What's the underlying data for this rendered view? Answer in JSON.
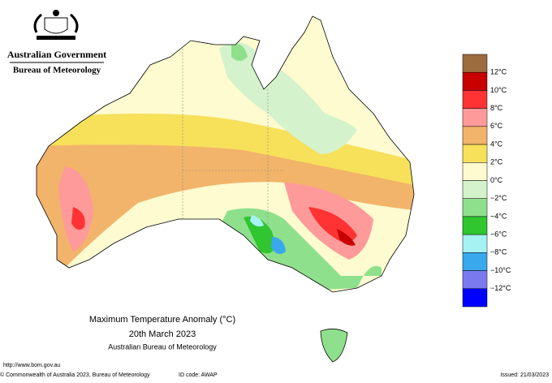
{
  "header": {
    "agency": "Australian Government",
    "bureau": "Bureau of Meteorology"
  },
  "map": {
    "title": "Maximum Temperature Anomaly (°C)",
    "date": "20th March 2023",
    "source": "Australian Bureau of Meteorology"
  },
  "legend": {
    "colors": [
      "#9c6b3e",
      "#c80000",
      "#ff3333",
      "#ff9a9a",
      "#f2b46a",
      "#f7e05a",
      "#fdfbcf",
      "#d4f2cc",
      "#8fe08c",
      "#2fc62f",
      "#a6f2f2",
      "#39a8ec",
      "#7a7aee",
      "#0000ff"
    ],
    "labels": [
      "12°C",
      "10°C",
      "8°C",
      "6°C",
      "4°C",
      "2°C",
      "0°C",
      "−2°C",
      "−4°C",
      "−6°C",
      "−8°C",
      "−10°C",
      "−12°C"
    ]
  },
  "footer": {
    "url": "http://www.bom.gov.au",
    "copyright": "© Commonwealth of Australia 2023, Bureau of Meteorology",
    "id_code": "ID code: AWAP",
    "issued": "Issued: 21/03/2023"
  }
}
